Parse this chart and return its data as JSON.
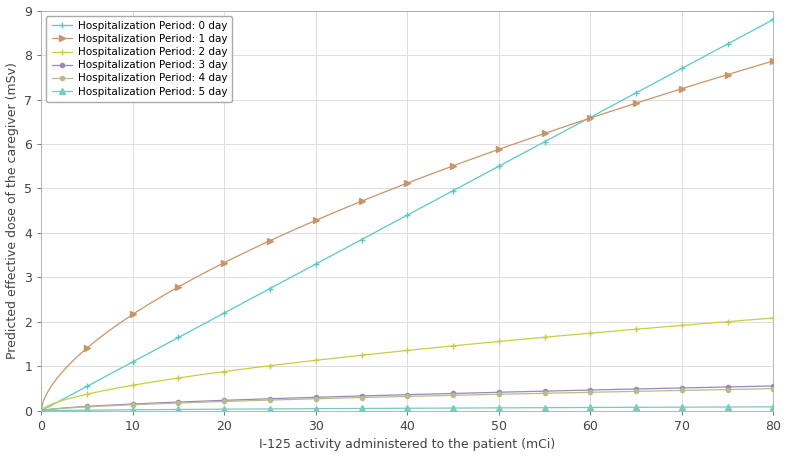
{
  "x_min": 0,
  "x_max": 80,
  "y_min": 0,
  "y_max": 9,
  "xlabel": "I-125 activity administered to the patient (mCi)",
  "ylabel": "Predicted effective dose of the caregiver (mSv)",
  "series": [
    {
      "label": "Hospitalization Period: 0 day",
      "coeff": 0.11,
      "power": 1.0,
      "color": "#5BC8C8",
      "marker": "+",
      "linewidth": 0.9,
      "markersize": 4.5
    },
    {
      "label": "Hospitalization Period: 1 day",
      "coeff": 0.52,
      "power": 0.62,
      "color": "#C8956A",
      "marker": ">",
      "linewidth": 0.9,
      "markersize": 4.0
    },
    {
      "label": "Hospitalization Period: 2 day",
      "coeff": 0.138,
      "power": 0.62,
      "color": "#CCCC44",
      "marker": "+",
      "linewidth": 0.9,
      "markersize": 4.5
    },
    {
      "label": "Hospitalization Period: 3 day",
      "coeff": 0.037,
      "power": 0.62,
      "color": "#9988BB",
      "marker": "o",
      "linewidth": 0.9,
      "markersize": 3.0
    },
    {
      "label": "Hospitalization Period: 4 day",
      "coeff": 0.033,
      "power": 0.62,
      "color": "#BBBB88",
      "marker": "o",
      "linewidth": 0.9,
      "markersize": 3.0
    },
    {
      "label": "Hospitalization Period: 5 day",
      "coeff": 0.006,
      "power": 0.62,
      "color": "#77CCBB",
      "marker": "^",
      "linewidth": 0.9,
      "markersize": 4.0
    }
  ],
  "grid_color": "#DDDDDD",
  "bg_color": "#FFFFFF",
  "fig_bg_color": "#FFFFFF",
  "marker_x_points": [
    0,
    5,
    10,
    15,
    20,
    25,
    30,
    35,
    40,
    45,
    50,
    55,
    60,
    65,
    70,
    75,
    80
  ],
  "font_size": 9,
  "legend_fontsize": 7.5
}
